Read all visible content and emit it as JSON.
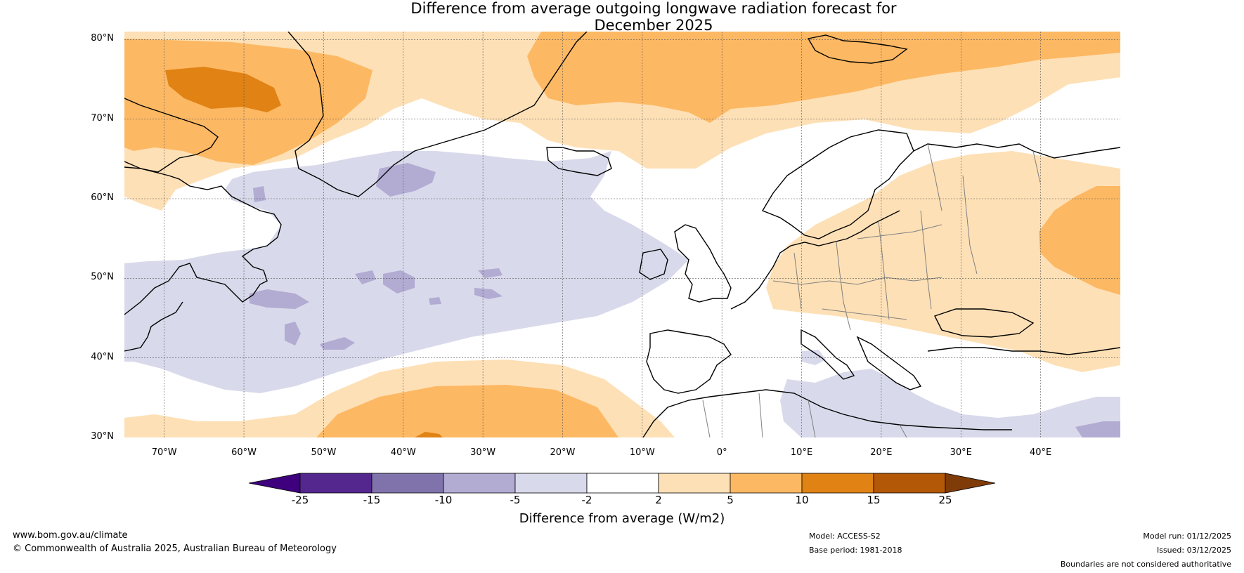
{
  "title": {
    "line1": "Difference from average outgoing longwave radiation forecast for",
    "line2": "December 2025"
  },
  "map": {
    "lat_labels": [
      "80°N",
      "70°N",
      "60°N",
      "50°N",
      "40°N",
      "30°N"
    ],
    "lon_labels": [
      "70°W",
      "60°W",
      "50°W",
      "40°W",
      "30°W",
      "20°W",
      "10°W",
      "0°",
      "10°E",
      "20°E",
      "30°E",
      "40°E"
    ],
    "region": {
      "lon_min": -75,
      "lon_max": 50,
      "lat_min": 30,
      "lat_max": 81
    }
  },
  "colorbar": {
    "ticks": [
      "-25",
      "-15",
      "-10",
      "-5",
      "-2",
      "2",
      "5",
      "10",
      "15",
      "25"
    ],
    "colors": [
      "#3f007d",
      "#54278f",
      "#8073ac",
      "#b2abd2",
      "#d8daeb",
      "#ffffff",
      "#fee0b6",
      "#fdb863",
      "#e08214",
      "#b35806",
      "#7f3b08"
    ],
    "label": "Difference from average (W/m2)"
  },
  "footer": {
    "website": "www.bom.gov.au/climate",
    "copyright": "© Commonwealth of Australia 2025, Australian Bureau of Meteorology",
    "model": "Model: ACCESS-S2",
    "base_period": "Base period: 1981-2018",
    "model_run": "Model run: 01/12/2025",
    "issued": "Issued: 03/12/2025",
    "disclaimer": "Boundaries are not considered authoritative"
  }
}
